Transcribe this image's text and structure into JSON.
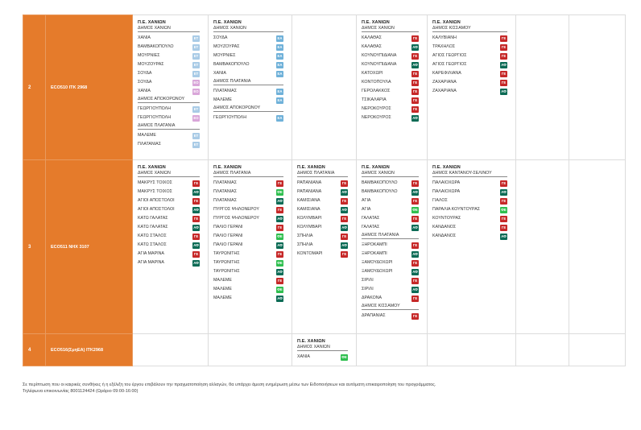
{
  "rows": [
    {
      "number": "2",
      "code": "ECO510 ΙΤΚ 2968",
      "cells": [
        {
          "region": "Π.Ε. ΧΑΝΙΩΝ",
          "groups": [
            {
              "header": "ΔΗΜΟΣ ΧΑΝΙΩΝ",
              "items": [
                {
                  "name": "ΧΑΝΙΑ",
                  "badge": "ΕΤ"
                },
                {
                  "name": "ΒΑΜΒΑΚΟΠΟΥΛΟ",
                  "badge": "ΕΤ"
                },
                {
                  "name": "ΜΟΥΡΝΙΕΣ",
                  "badge": "ΕΤ"
                },
                {
                  "name": "ΜΟΥΖΟΥΡΑΣ",
                  "badge": "ΕΤ"
                },
                {
                  "name": "ΣΟΥΔΑ",
                  "badge": "ΕΤ"
                },
                {
                  "name": "ΣΟΥΔΑ",
                  "badge": "ΕΟ"
                },
                {
                  "name": "ΧΑΝΙΑ",
                  "badge": "ΕΟ"
                }
              ]
            },
            {
              "header": "ΔΗΜΟΣ ΑΠΟΚΟΡΩΝΟΥ",
              "items": [
                {
                  "name": "ΓΕΩΡΓΙΟΥΠΟΛΗ",
                  "badge": "ΕΤ"
                },
                {
                  "name": "ΓΕΩΡΓΙΟΥΠΟΛΗ",
                  "badge": "ΕΟ"
                }
              ]
            },
            {
              "header": "ΔΗΜΟΣ ΠΛΑΤΑΝΙΑ",
              "items": [
                {
                  "name": "ΜΑΛΕΜΕ",
                  "badge": "ΕΤ"
                },
                {
                  "name": "ΠΛΑΤΑΝΙΑΣ",
                  "badge": "ΕΤ"
                }
              ]
            }
          ]
        },
        {
          "region": "Π.Ε. ΧΑΝΙΩΝ",
          "groups": [
            {
              "header": "ΔΗΜΟΣ ΧΑΝΙΩΝ",
              "items": [
                {
                  "name": "ΣΟΥΔΑ",
                  "badge": "ΕΑ"
                },
                {
                  "name": "ΜΟΥΖΟΥΡΑΣ",
                  "badge": "ΕΑ"
                },
                {
                  "name": "ΜΟΥΡΝΙΕΣ",
                  "badge": "ΕΑ"
                },
                {
                  "name": "ΒΑΜΒΑΚΟΠΟΥΛΟ",
                  "badge": "ΕΑ"
                },
                {
                  "name": "ΧΑΝΙΑ",
                  "badge": "ΕΑ"
                }
              ]
            },
            {
              "header": "ΔΗΜΟΣ ΠΛΑΤΑΝΙΑ",
              "items": [
                {
                  "name": "ΠΛΑΤΑΝΙΑΣ",
                  "badge": "ΕΑ"
                },
                {
                  "name": "ΜΑΛΕΜΕ",
                  "badge": "ΕΑ"
                }
              ]
            },
            {
              "header": "ΔΗΜΟΣ ΑΠΟΚΟΡΩΝΟΥ",
              "items": [
                {
                  "name": "ΓΕΩΡΓΙΟΥΠΟΛΗ",
                  "badge": "ΕΑ"
                }
              ]
            }
          ]
        },
        null,
        {
          "region": "Π.Ε. ΧΑΝΙΩΝ",
          "groups": [
            {
              "header": "ΔΗΜΟΣ ΧΑΝΙΩΝ",
              "items": [
                {
                  "name": "ΚΑΛΑΘΑΣ",
                  "badge": "ΓΕ"
                },
                {
                  "name": "ΚΑΛΑΘΑΣ",
                  "badge": "ΑΦ"
                },
                {
                  "name": "ΚΟΥΝΟΥΠΙΔΙΑΝΑ",
                  "badge": "ΓΕ"
                },
                {
                  "name": "ΚΟΥΝΟΥΠΙΔΙΑΝΑ",
                  "badge": "ΑΦ"
                },
                {
                  "name": "ΚΑΤΟΧΩΡΙ",
                  "badge": "ΓΕ"
                },
                {
                  "name": "ΚΟΝΤΟΠΟΥΛΑ",
                  "badge": "ΓΕ"
                },
                {
                  "name": "ΓΕΡΟΛΑΚΚΟΣ",
                  "badge": "ΓΕ"
                },
                {
                  "name": "ΤΣΙΚΑΛΑΡΙΑ",
                  "badge": "ΓΕ"
                },
                {
                  "name": "ΝΕΡΟΚΟΥΡΟΣ",
                  "badge": "ΓΕ"
                },
                {
                  "name": "ΝΕΡΟΚΟΥΡΟΣ",
                  "badge": "ΑΦ"
                }
              ]
            }
          ]
        },
        {
          "region": "Π.Ε. ΧΑΝΙΩΝ",
          "groups": [
            {
              "header": "ΔΗΜΟΣ ΚΙΣΣΑΜΟΥ",
              "items": [
                {
                  "name": "ΚΑΛΥΒΙΑΝΗ",
                  "badge": "ΓΕ"
                },
                {
                  "name": "ΤΡΑΧΗΛΟΣ",
                  "badge": "ΓΕ"
                },
                {
                  "name": "ΑΓΙΟΣ ΓΕΩΡΓΙΟΣ",
                  "badge": "ΓΕ"
                },
                {
                  "name": "ΑΓΙΟΣ ΓΕΩΡΓΙΟΣ",
                  "badge": "ΑΦ"
                },
                {
                  "name": "ΚΑΡΕΦΙΛΙΑΝΑ",
                  "badge": "ΓΕ"
                },
                {
                  "name": "ΖΑΧΑΡΙΑΝΑ",
                  "badge": "ΓΕ"
                },
                {
                  "name": "ΖΑΧΑΡΙΑΝΑ",
                  "badge": "ΑΦ"
                }
              ]
            }
          ]
        },
        null,
        null
      ]
    },
    {
      "number": "3",
      "code": "ECO511 ΝΗΧ 3107",
      "cells": [
        {
          "region": "Π.Ε. ΧΑΝΙΩΝ",
          "groups": [
            {
              "header": "ΔΗΜΟΣ ΧΑΝΙΩΝ",
              "items": [
                {
                  "name": "ΜΑΚΡΥΣ ΤΟΙΧΟΣ",
                  "badge": "ΓΕ"
                },
                {
                  "name": "ΜΑΚΡΥΣ ΤΟΙΧΟΣ",
                  "badge": "ΑΦ"
                },
                {
                  "name": "ΑΓΙΟΙ ΑΠΟΣΤΟΛΟΙ",
                  "badge": "ΓΕ"
                },
                {
                  "name": "ΑΓΙΟΙ ΑΠΟΣΤΟΛΟΙ",
                  "badge": "ΑΦ"
                },
                {
                  "name": "ΚΑΤΩ ΓΑΛΑΤΑΣ",
                  "badge": "ΓΕ"
                },
                {
                  "name": "ΚΑΤΩ ΓΑΛΑΤΑΣ",
                  "badge": "ΑΦ"
                },
                {
                  "name": "ΚΑΤΩ ΣΤΑΛΟΣ",
                  "badge": "ΓΕ"
                },
                {
                  "name": "ΚΑΤΩ ΣΤΑΛΟΣ",
                  "badge": "ΑΦ"
                },
                {
                  "name": "ΑΓΙΑ ΜΑΡΙΝΑ",
                  "badge": "ΓΕ"
                },
                {
                  "name": "ΑΓΙΑ ΜΑΡΙΝΑ",
                  "badge": "ΑΦ"
                }
              ]
            }
          ]
        },
        {
          "region": "Π.Ε. ΧΑΝΙΩΝ",
          "groups": [
            {
              "header": "ΔΗΜΟΣ ΠΛΑΤΑΝΙΑ",
              "items": [
                {
                  "name": "ΠΛΑΤΑΝΙΑΣ",
                  "badge": "ΓΕ"
                },
                {
                  "name": "ΠΛΑΤΑΝΙΑΣ",
                  "badge": "ΦΕ"
                },
                {
                  "name": "ΠΛΑΤΑΝΙΑΣ",
                  "badge": "ΑΦ"
                },
                {
                  "name": "ΠΥΡΓΟΣ ΨΗΛΟΝΕΡΟΥ",
                  "badge": "ΓΕ"
                },
                {
                  "name": "ΠΥΡΓΟΣ ΨΗΛΟΝΕΡΟΥ",
                  "badge": "ΑΦ"
                },
                {
                  "name": "ΠΑΛΙΟ ΓΕΡΑΝΙ",
                  "badge": "ΓΕ"
                },
                {
                  "name": "ΠΑΛΙΟ ΓΕΡΑΝΙ",
                  "badge": "ΦΕ"
                },
                {
                  "name": "ΠΑΛΙΟ ΓΕΡΑΝΙ",
                  "badge": "ΑΦ"
                },
                {
                  "name": "ΤΑΥΡΩΝΙΤΗΣ",
                  "badge": "ΓΕ"
                },
                {
                  "name": "ΤΑΥΡΩΝΙΤΗΣ",
                  "badge": "ΦΕ"
                },
                {
                  "name": "ΤΑΥΡΩΝΙΤΗΣ",
                  "badge": "ΑΦ"
                },
                {
                  "name": "ΜΑΛΕΜΕ",
                  "badge": "ΓΕ"
                },
                {
                  "name": "ΜΑΛΕΜΕ",
                  "badge": "ΦΕ"
                },
                {
                  "name": "ΜΑΛΕΜΕ",
                  "badge": "ΑΦ"
                }
              ]
            }
          ]
        },
        {
          "region": "Π.Ε. ΧΑΝΙΩΝ",
          "groups": [
            {
              "header": "ΔΗΜΟΣ ΠΛΑΤΑΝΙΑ",
              "items": [
                {
                  "name": "ΡΑΠΑΝΙΑΝΑ",
                  "badge": "ΓΕ"
                },
                {
                  "name": "ΡΑΠΑΝΙΑΝΑ",
                  "badge": "ΑΦ"
                },
                {
                  "name": "ΚΑΜΙΣΙΑΝΑ",
                  "badge": "ΓΕ"
                },
                {
                  "name": "ΚΑΜΙΣΙΑΝΑ",
                  "badge": "ΑΦ"
                },
                {
                  "name": "ΚΟΛΥΜΒΑΡΙ",
                  "badge": "ΓΕ"
                },
                {
                  "name": "ΚΟΛΥΜΒΑΡΙ",
                  "badge": "ΑΦ"
                },
                {
                  "name": "ΣΠΗΛΙΑ",
                  "badge": "ΓΕ"
                },
                {
                  "name": "ΣΠΗΛΙΑ",
                  "badge": "ΑΦ"
                },
                {
                  "name": "ΚΟΝΤΟΜΑΡΙ",
                  "badge": "ΓΕ"
                }
              ]
            }
          ]
        },
        {
          "region": "Π.Ε. ΧΑΝΙΩΝ",
          "groups": [
            {
              "header": "ΔΗΜΟΣ ΧΑΝΙΩΝ",
              "items": [
                {
                  "name": "ΒΑΜΒΑΚΟΠΟΥΛΟ",
                  "badge": "ΓΕ"
                },
                {
                  "name": "ΒΑΜΒΑΚΟΠΟΥΛΟ",
                  "badge": "ΑΦ"
                },
                {
                  "name": "ΑΓΙΑ",
                  "badge": "ΓΕ"
                },
                {
                  "name": "ΑΓΙΑ",
                  "badge": "ΦΕ"
                },
                {
                  "name": "ΓΑΛΑΤΑΣ",
                  "badge": "ΓΕ"
                },
                {
                  "name": "ΓΑΛΑΤΑΣ",
                  "badge": "ΑΦ"
                }
              ]
            },
            {
              "header": "ΔΗΜΟΣ ΠΛΑΤΑΝΙΑ",
              "items": [
                {
                  "name": "ΞΗΡΟΚΑΜΠΙ",
                  "badge": "ΓΕ"
                },
                {
                  "name": "ΞΗΡΟΚΑΜΠΙ",
                  "badge": "ΑΦ"
                },
                {
                  "name": "ΞΑΜΟΥΔΟΧΩΡΙ",
                  "badge": "ΓΕ"
                },
                {
                  "name": "ΞΑΜΟΥΔΟΧΩΡΙ",
                  "badge": "ΑΦ"
                },
                {
                  "name": "ΣΙΡΙΛΙ",
                  "badge": "ΓΕ"
                },
                {
                  "name": "ΣΙΡΙΛΙ",
                  "badge": "ΑΦ"
                },
                {
                  "name": "ΔΡΑΚΟΝΑ",
                  "badge": "ΓΕ"
                }
              ]
            },
            {
              "header": "ΔΗΜΟΣ ΚΙΣΣΑΜΟΥ",
              "items": [
                {
                  "name": "ΔΡΑΠΑΝΙΑΣ",
                  "badge": "ΓΕ"
                }
              ]
            }
          ]
        },
        {
          "region": "Π.Ε. ΧΑΝΙΩΝ",
          "groups": [
            {
              "header": "ΔΗΜΟΣ ΚΑΝΤΑΝΟΥ-ΣΕΛΙΝΟΥ",
              "items": [
                {
                  "name": "ΠΑΛΑΙΟΧΩΡΑ",
                  "badge": "ΓΕ"
                },
                {
                  "name": "ΠΑΛΑΙΟΧΩΡΑ",
                  "badge": "ΑΦ"
                },
                {
                  "name": "ΓΙΑΛΟΣ",
                  "badge": "ΓΕ"
                },
                {
                  "name": "ΠΑΡΑΛΙΑ ΚΟΥΝΤΟΥΡΑΣ",
                  "badge": "ΦΕ"
                },
                {
                  "name": "ΚΟΥΝΤΟΥΡΑΣ",
                  "badge": "ΓΕ"
                },
                {
                  "name": "ΚΑΝΔΑΝΟΣ",
                  "badge": "ΓΕ"
                },
                {
                  "name": "ΚΑΝΔΑΝΟΣ",
                  "badge": "ΑΦ"
                }
              ]
            }
          ]
        },
        null,
        null
      ]
    },
    {
      "number": "4",
      "code": "ECO516(ΣμηΕΑ) ΙΤΚ2968",
      "cells": [
        null,
        null,
        {
          "region": "Π.Ε. ΧΑΝΙΩΝ",
          "groups": [
            {
              "header": "ΔΗΜΟΣ ΧΑΝΙΩΝ",
              "items": [
                {
                  "name": "ΧΑΝΙΑ",
                  "badge": "ΦΕ"
                }
              ]
            }
          ]
        },
        null,
        null,
        null,
        null
      ]
    }
  ],
  "badge_colors": {
    "ΕΤ": "#a9cbe6",
    "ΕΑ": "#6fb1d9",
    "ΕΟ": "#d9a6d9",
    "ΓΕ": "#c62828",
    "ΑΦ": "#0b6b55",
    "ΦΕ": "#2fbf4f"
  },
  "footer": {
    "line1": "Σε περίπτωση που οι καιρικές συνθήκες ή η εξέλιξη του έργου επιβάλουν την πραγματοποίηση αλλαγών, θα υπάρχει άμεση ενημέρωση μέσω των Ειδοποιήσεων και αυτόματη επικαιροποίηση του προγράμματος.",
    "line2": "Τηλέφωνα επικοινωνίας 8001124424 (Ωράριο 09:00-16:00)"
  }
}
